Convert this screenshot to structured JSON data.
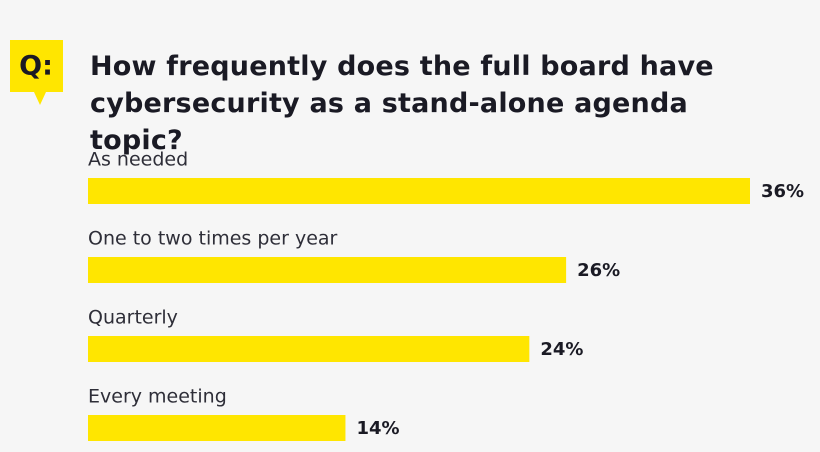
{
  "chart_data": {
    "type": "bar",
    "orientation": "horizontal",
    "badge": "Q:",
    "title": "How frequently does the full board have cybersecurity as a stand-alone agenda topic?",
    "categories": [
      "As needed",
      "One to two times per year",
      "Quarterly",
      "Every meeting"
    ],
    "values": [
      36,
      26,
      24,
      14
    ],
    "value_labels": [
      "36%",
      "26%",
      "24%",
      "14%"
    ],
    "color": "#ffe600"
  }
}
